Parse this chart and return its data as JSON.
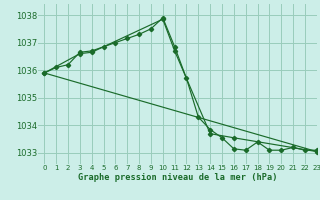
{
  "title": "Graphe pression niveau de la mer (hPa)",
  "background_color": "#cceee8",
  "grid_color": "#99ccbb",
  "line_color": "#1a6b2a",
  "xlim": [
    -0.5,
    23
  ],
  "ylim": [
    1032.6,
    1038.4
  ],
  "yticks": [
    1033,
    1034,
    1035,
    1036,
    1037,
    1038
  ],
  "xticks": [
    0,
    1,
    2,
    3,
    4,
    5,
    6,
    7,
    8,
    9,
    10,
    11,
    12,
    13,
    14,
    15,
    16,
    17,
    18,
    19,
    20,
    21,
    22,
    23
  ],
  "curve1_x": [
    0,
    1,
    2,
    3,
    4,
    5,
    6,
    7,
    8,
    9,
    10,
    11,
    12,
    13,
    14,
    15,
    16,
    17,
    18,
    19,
    20,
    21,
    22,
    23
  ],
  "curve1_y": [
    1035.9,
    1036.1,
    1036.2,
    1036.65,
    1036.7,
    1036.85,
    1037.0,
    1037.15,
    1037.3,
    1037.5,
    1037.9,
    1036.85,
    1035.7,
    1034.3,
    1033.85,
    1033.55,
    1033.15,
    1033.1,
    1033.4,
    1033.1,
    1033.1,
    1033.2,
    1033.1,
    1033.1
  ],
  "curve2_x": [
    0,
    3,
    4,
    10,
    11,
    14,
    16,
    23
  ],
  "curve2_y": [
    1035.9,
    1036.6,
    1036.65,
    1037.85,
    1036.7,
    1033.7,
    1033.55,
    1033.05
  ],
  "curve3_x": [
    0,
    23
  ],
  "curve3_y": [
    1035.9,
    1033.05
  ]
}
